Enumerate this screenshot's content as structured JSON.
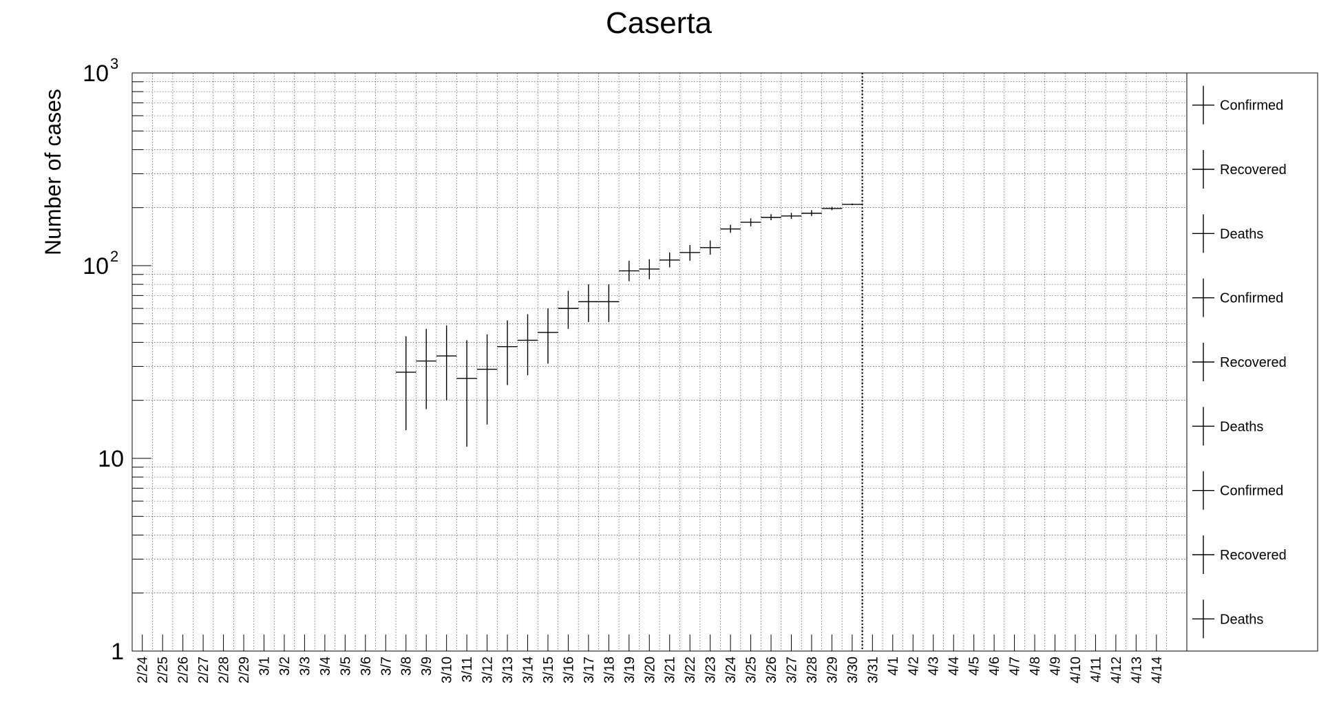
{
  "chart_data": {
    "type": "scatter",
    "title": "Caserta",
    "ylabel": "Number of cases",
    "xlabel": "",
    "y_scale": "log",
    "ylim": [
      1,
      1000
    ],
    "y_tick_labels": [
      {
        "value": 1,
        "label": "1"
      },
      {
        "value": 10,
        "label": "10"
      },
      {
        "value": 100,
        "base": "10",
        "exp": "2"
      },
      {
        "value": 1000,
        "base": "10",
        "exp": "3"
      }
    ],
    "grid": true,
    "categories": [
      "2/24",
      "2/25",
      "2/26",
      "2/27",
      "2/28",
      "2/29",
      "3/1",
      "3/2",
      "3/3",
      "3/4",
      "3/5",
      "3/6",
      "3/7",
      "3/8",
      "3/9",
      "3/10",
      "3/11",
      "3/12",
      "3/13",
      "3/14",
      "3/15",
      "3/16",
      "3/17",
      "3/18",
      "3/19",
      "3/20",
      "3/21",
      "3/22",
      "3/23",
      "3/24",
      "3/25",
      "3/26",
      "3/27",
      "3/28",
      "3/29",
      "3/30",
      "3/31",
      "4/1",
      "4/2",
      "4/3",
      "4/4",
      "4/5",
      "4/6",
      "4/7",
      "4/8",
      "4/9",
      "4/10",
      "4/11",
      "4/12",
      "4/13",
      "4/14"
    ],
    "reference_line_date": "3/30",
    "series": [
      {
        "name": "Confirmed",
        "points": [
          {
            "x": "3/8",
            "y": 28,
            "ylow": 14,
            "yhigh": 43
          },
          {
            "x": "3/9",
            "y": 32,
            "ylow": 18,
            "yhigh": 47
          },
          {
            "x": "3/10",
            "y": 34,
            "ylow": 20,
            "yhigh": 49
          },
          {
            "x": "3/11",
            "y": 26,
            "ylow": 11.5,
            "yhigh": 41
          },
          {
            "x": "3/12",
            "y": 29,
            "ylow": 15,
            "yhigh": 44
          },
          {
            "x": "3/13",
            "y": 38,
            "ylow": 24,
            "yhigh": 52
          },
          {
            "x": "3/14",
            "y": 41,
            "ylow": 27,
            "yhigh": 56
          },
          {
            "x": "3/15",
            "y": 45,
            "ylow": 31,
            "yhigh": 60
          },
          {
            "x": "3/16",
            "y": 60,
            "ylow": 47,
            "yhigh": 74
          },
          {
            "x": "3/17",
            "y": 65,
            "ylow": 51,
            "yhigh": 80
          },
          {
            "x": "3/18",
            "y": 65,
            "ylow": 51,
            "yhigh": 80
          },
          {
            "x": "3/19",
            "y": 94,
            "ylow": 83,
            "yhigh": 106
          },
          {
            "x": "3/20",
            "y": 96,
            "ylow": 85,
            "yhigh": 108
          },
          {
            "x": "3/21",
            "y": 107,
            "ylow": 98,
            "yhigh": 117
          },
          {
            "x": "3/22",
            "y": 117,
            "ylow": 106,
            "yhigh": 128
          },
          {
            "x": "3/23",
            "y": 124,
            "ylow": 114,
            "yhigh": 135
          },
          {
            "x": "3/24",
            "y": 155,
            "ylow": 148,
            "yhigh": 163
          },
          {
            "x": "3/25",
            "y": 168,
            "ylow": 160,
            "yhigh": 176
          },
          {
            "x": "3/26",
            "y": 178,
            "ylow": 172,
            "yhigh": 185
          },
          {
            "x": "3/27",
            "y": 181,
            "ylow": 175,
            "yhigh": 188
          },
          {
            "x": "3/28",
            "y": 187,
            "ylow": 181,
            "yhigh": 194
          },
          {
            "x": "3/29",
            "y": 198,
            "ylow": 194,
            "yhigh": 202
          },
          {
            "x": "3/30",
            "y": 208,
            "ylow": 206,
            "yhigh": 210
          }
        ]
      },
      {
        "name": "Recovered",
        "points": []
      },
      {
        "name": "Deaths",
        "points": []
      }
    ],
    "legend": {
      "position": "right",
      "entries": [
        "Confirmed",
        "Recovered",
        "Deaths",
        "Confirmed",
        "Recovered",
        "Deaths",
        "Confirmed",
        "Recovered",
        "Deaths"
      ]
    }
  }
}
